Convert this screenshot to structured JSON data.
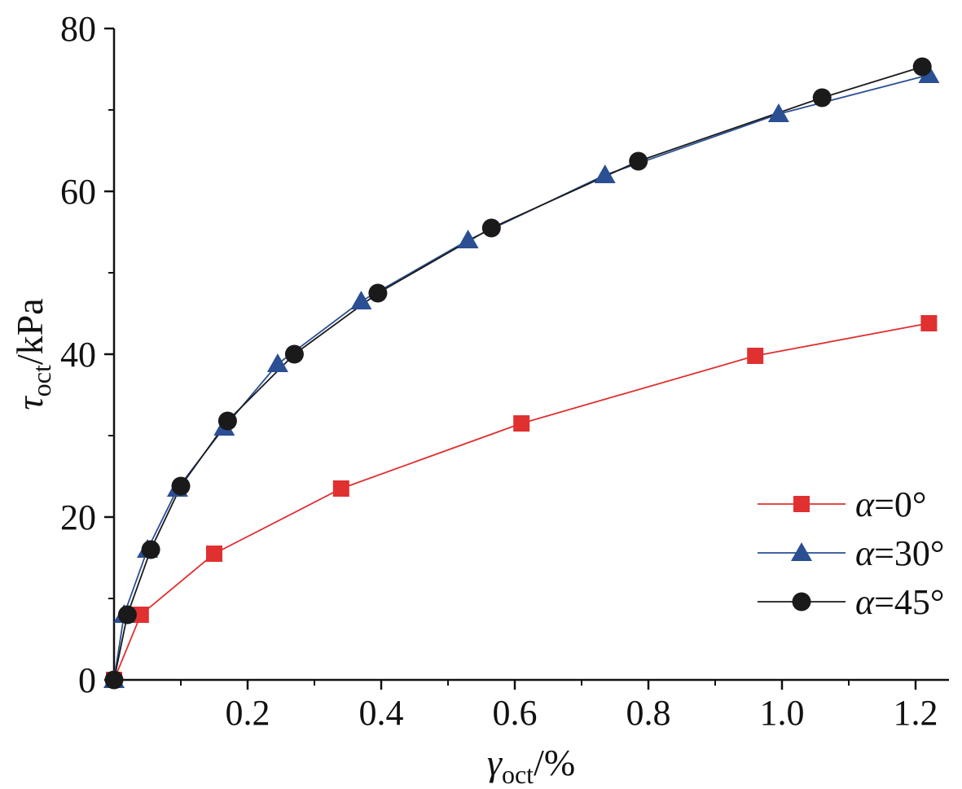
{
  "chart_data": {
    "type": "line",
    "xlabel": {
      "symbol": "γ",
      "sub": "oct",
      "unit": "/%"
    },
    "ylabel": {
      "symbol": "τ",
      "sub": "oct",
      "unit": "/kPa"
    },
    "xlim": [
      0,
      1.25
    ],
    "ylim": [
      0,
      80
    ],
    "x_ticks": [
      {
        "value": 0.2,
        "label": "0.2"
      },
      {
        "value": 0.4,
        "label": "0.4"
      },
      {
        "value": 0.6,
        "label": "0.6"
      },
      {
        "value": 0.8,
        "label": "0.8"
      },
      {
        "value": 1.0,
        "label": "1.0"
      },
      {
        "value": 1.2,
        "label": "1.2"
      }
    ],
    "y_ticks": [
      {
        "value": 0,
        "label": "0"
      },
      {
        "value": 20,
        "label": "20"
      },
      {
        "value": 40,
        "label": "40"
      },
      {
        "value": 60,
        "label": "60"
      },
      {
        "value": 80,
        "label": "80"
      }
    ],
    "grid": false,
    "legend_position": "bottom-right",
    "series": [
      {
        "name": "α=0°",
        "name_symbol": "α",
        "name_rest": "=0°",
        "marker": "square",
        "color": "#e03030",
        "points": [
          [
            0,
            0
          ],
          [
            0.04,
            8
          ],
          [
            0.15,
            15.5
          ],
          [
            0.34,
            23.5
          ],
          [
            0.61,
            31.5
          ],
          [
            0.96,
            39.8
          ],
          [
            1.22,
            43.8
          ]
        ]
      },
      {
        "name": "α=30°",
        "name_symbol": "α",
        "name_rest": "=30°",
        "marker": "triangle",
        "color": "#2a4f93",
        "points": [
          [
            0,
            0
          ],
          [
            0.015,
            8
          ],
          [
            0.05,
            16
          ],
          [
            0.095,
            23.5
          ],
          [
            0.165,
            31
          ],
          [
            0.245,
            38.8
          ],
          [
            0.37,
            46.5
          ],
          [
            0.53,
            54
          ],
          [
            0.735,
            62
          ],
          [
            0.995,
            69.5
          ],
          [
            1.22,
            74.3
          ]
        ]
      },
      {
        "name": "α=45°",
        "name_symbol": "α",
        "name_rest": "=45°",
        "marker": "circle",
        "color": "#1a1a1a",
        "points": [
          [
            0,
            0
          ],
          [
            0.02,
            8
          ],
          [
            0.055,
            16
          ],
          [
            0.1,
            23.8
          ],
          [
            0.17,
            31.8
          ],
          [
            0.27,
            40
          ],
          [
            0.395,
            47.5
          ],
          [
            0.565,
            55.5
          ],
          [
            0.785,
            63.7
          ],
          [
            1.06,
            71.5
          ],
          [
            1.21,
            75.3
          ]
        ]
      }
    ]
  }
}
